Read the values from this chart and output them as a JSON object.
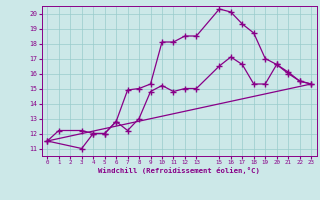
{
  "xlabel": "Windchill (Refroidissement éolien,°C)",
  "bg_color": "#cce8e8",
  "line_color": "#880088",
  "grid_color": "#99cccc",
  "xlim": [
    -0.5,
    23.5
  ],
  "ylim": [
    10.5,
    20.5
  ],
  "xticks": [
    0,
    1,
    2,
    3,
    4,
    5,
    6,
    7,
    8,
    9,
    10,
    11,
    12,
    13,
    15,
    16,
    17,
    18,
    19,
    20,
    21,
    22,
    23
  ],
  "yticks": [
    11,
    12,
    13,
    14,
    15,
    16,
    17,
    18,
    19,
    20
  ],
  "series1_x": [
    0,
    1,
    3,
    4,
    5,
    6,
    7,
    8,
    9,
    10,
    11,
    12,
    13,
    15,
    16,
    17,
    18,
    19,
    20,
    21,
    22,
    23
  ],
  "series1_y": [
    11.5,
    12.2,
    12.2,
    12.0,
    12.0,
    12.8,
    14.9,
    15.0,
    15.3,
    18.1,
    18.1,
    18.5,
    18.5,
    20.3,
    20.1,
    19.3,
    18.7,
    17.0,
    16.6,
    16.0,
    15.5,
    15.3
  ],
  "series2_x": [
    0,
    3,
    4,
    5,
    6,
    7,
    8,
    9,
    10,
    11,
    12,
    13,
    15,
    16,
    17,
    18,
    19,
    20,
    21,
    22,
    23
  ],
  "series2_y": [
    11.5,
    11.0,
    12.0,
    12.0,
    12.8,
    12.2,
    13.0,
    14.8,
    15.2,
    14.8,
    15.0,
    15.0,
    16.5,
    17.1,
    16.6,
    15.3,
    15.3,
    16.6,
    16.1,
    15.5,
    15.3
  ],
  "series3_x": [
    0,
    23
  ],
  "series3_y": [
    11.5,
    15.3
  ],
  "marker": "+",
  "markersize": 4,
  "linewidth": 0.9
}
